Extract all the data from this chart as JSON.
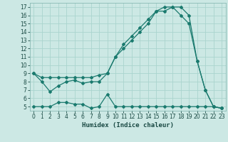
{
  "bg_color": "#cce8e4",
  "line_color": "#1a7a6e",
  "grid_color": "#aad4ce",
  "xlabel": "Humidex (Indice chaleur)",
  "xlim": [
    -0.5,
    23.5
  ],
  "ylim": [
    4.5,
    17.5
  ],
  "yticks": [
    5,
    6,
    7,
    8,
    9,
    10,
    11,
    12,
    13,
    14,
    15,
    16,
    17
  ],
  "xticks": [
    0,
    1,
    2,
    3,
    4,
    5,
    6,
    7,
    8,
    9,
    10,
    11,
    12,
    13,
    14,
    15,
    16,
    17,
    18,
    19,
    20,
    21,
    22,
    23
  ],
  "line1_x": [
    0,
    1,
    2,
    3,
    4,
    5,
    6,
    7,
    8,
    9,
    10,
    11,
    12,
    13,
    14,
    15,
    16,
    17,
    18,
    19,
    20,
    21,
    22,
    23
  ],
  "line1_y": [
    9.0,
    8.5,
    8.5,
    8.5,
    8.5,
    8.5,
    8.5,
    8.5,
    8.8,
    9.0,
    11.0,
    12.5,
    13.5,
    14.5,
    15.5,
    16.5,
    17.0,
    17.0,
    17.0,
    16.0,
    10.5,
    7.0,
    5.0,
    4.8
  ],
  "line2_x": [
    0,
    1,
    2,
    3,
    4,
    5,
    6,
    7,
    8,
    9,
    10,
    11,
    12,
    13,
    14,
    15,
    16,
    17,
    18,
    19,
    20,
    21,
    22,
    23
  ],
  "line2_y": [
    9.0,
    8.0,
    6.8,
    7.5,
    8.0,
    8.2,
    7.8,
    8.0,
    8.0,
    9.0,
    11.0,
    12.0,
    13.0,
    14.0,
    15.0,
    16.5,
    16.5,
    17.0,
    16.0,
    15.0,
    10.5,
    7.0,
    5.0,
    4.8
  ],
  "line3_x": [
    0,
    1,
    2,
    3,
    4,
    5,
    6,
    7,
    8,
    9,
    10,
    11,
    12,
    13,
    14,
    15,
    16,
    17,
    18,
    19,
    20,
    21,
    22,
    23
  ],
  "line3_y": [
    5.0,
    5.0,
    5.0,
    5.5,
    5.5,
    5.3,
    5.3,
    4.8,
    5.0,
    6.5,
    5.0,
    5.0,
    5.0,
    5.0,
    5.0,
    5.0,
    5.0,
    5.0,
    5.0,
    5.0,
    5.0,
    5.0,
    5.0,
    4.8
  ]
}
